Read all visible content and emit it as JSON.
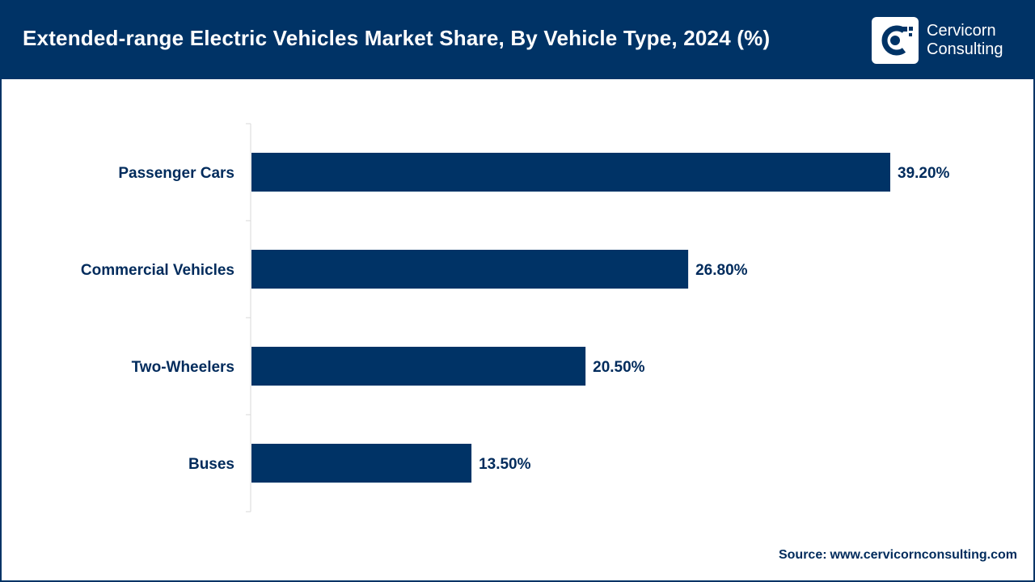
{
  "header": {
    "title": "Extended-range Electric Vehicles Market Share, By Vehicle Type, 2024 (%)",
    "logo_line1": "Cervicorn",
    "logo_line2": "Consulting"
  },
  "footer": {
    "source_label": "Source:",
    "source_url": "www.cervicornconsulting.com"
  },
  "colors": {
    "brand": "#003366",
    "bar": "#003366",
    "text": "#002b5c"
  },
  "chart_data": {
    "type": "bar",
    "orientation": "horizontal",
    "title": "Extended-range Electric Vehicles Market Share, By Vehicle Type, 2024 (%)",
    "categories": [
      "Passenger Cars",
      "Commercial Vehicles",
      "Two-Wheelers",
      "Buses"
    ],
    "values": [
      39.2,
      26.8,
      20.5,
      13.5
    ],
    "value_labels": [
      "39.20%",
      "26.80%",
      "20.50%",
      "13.50%"
    ],
    "xlabel": "",
    "ylabel": "",
    "xlim": [
      0,
      45
    ],
    "grid": false,
    "legend": "none"
  }
}
